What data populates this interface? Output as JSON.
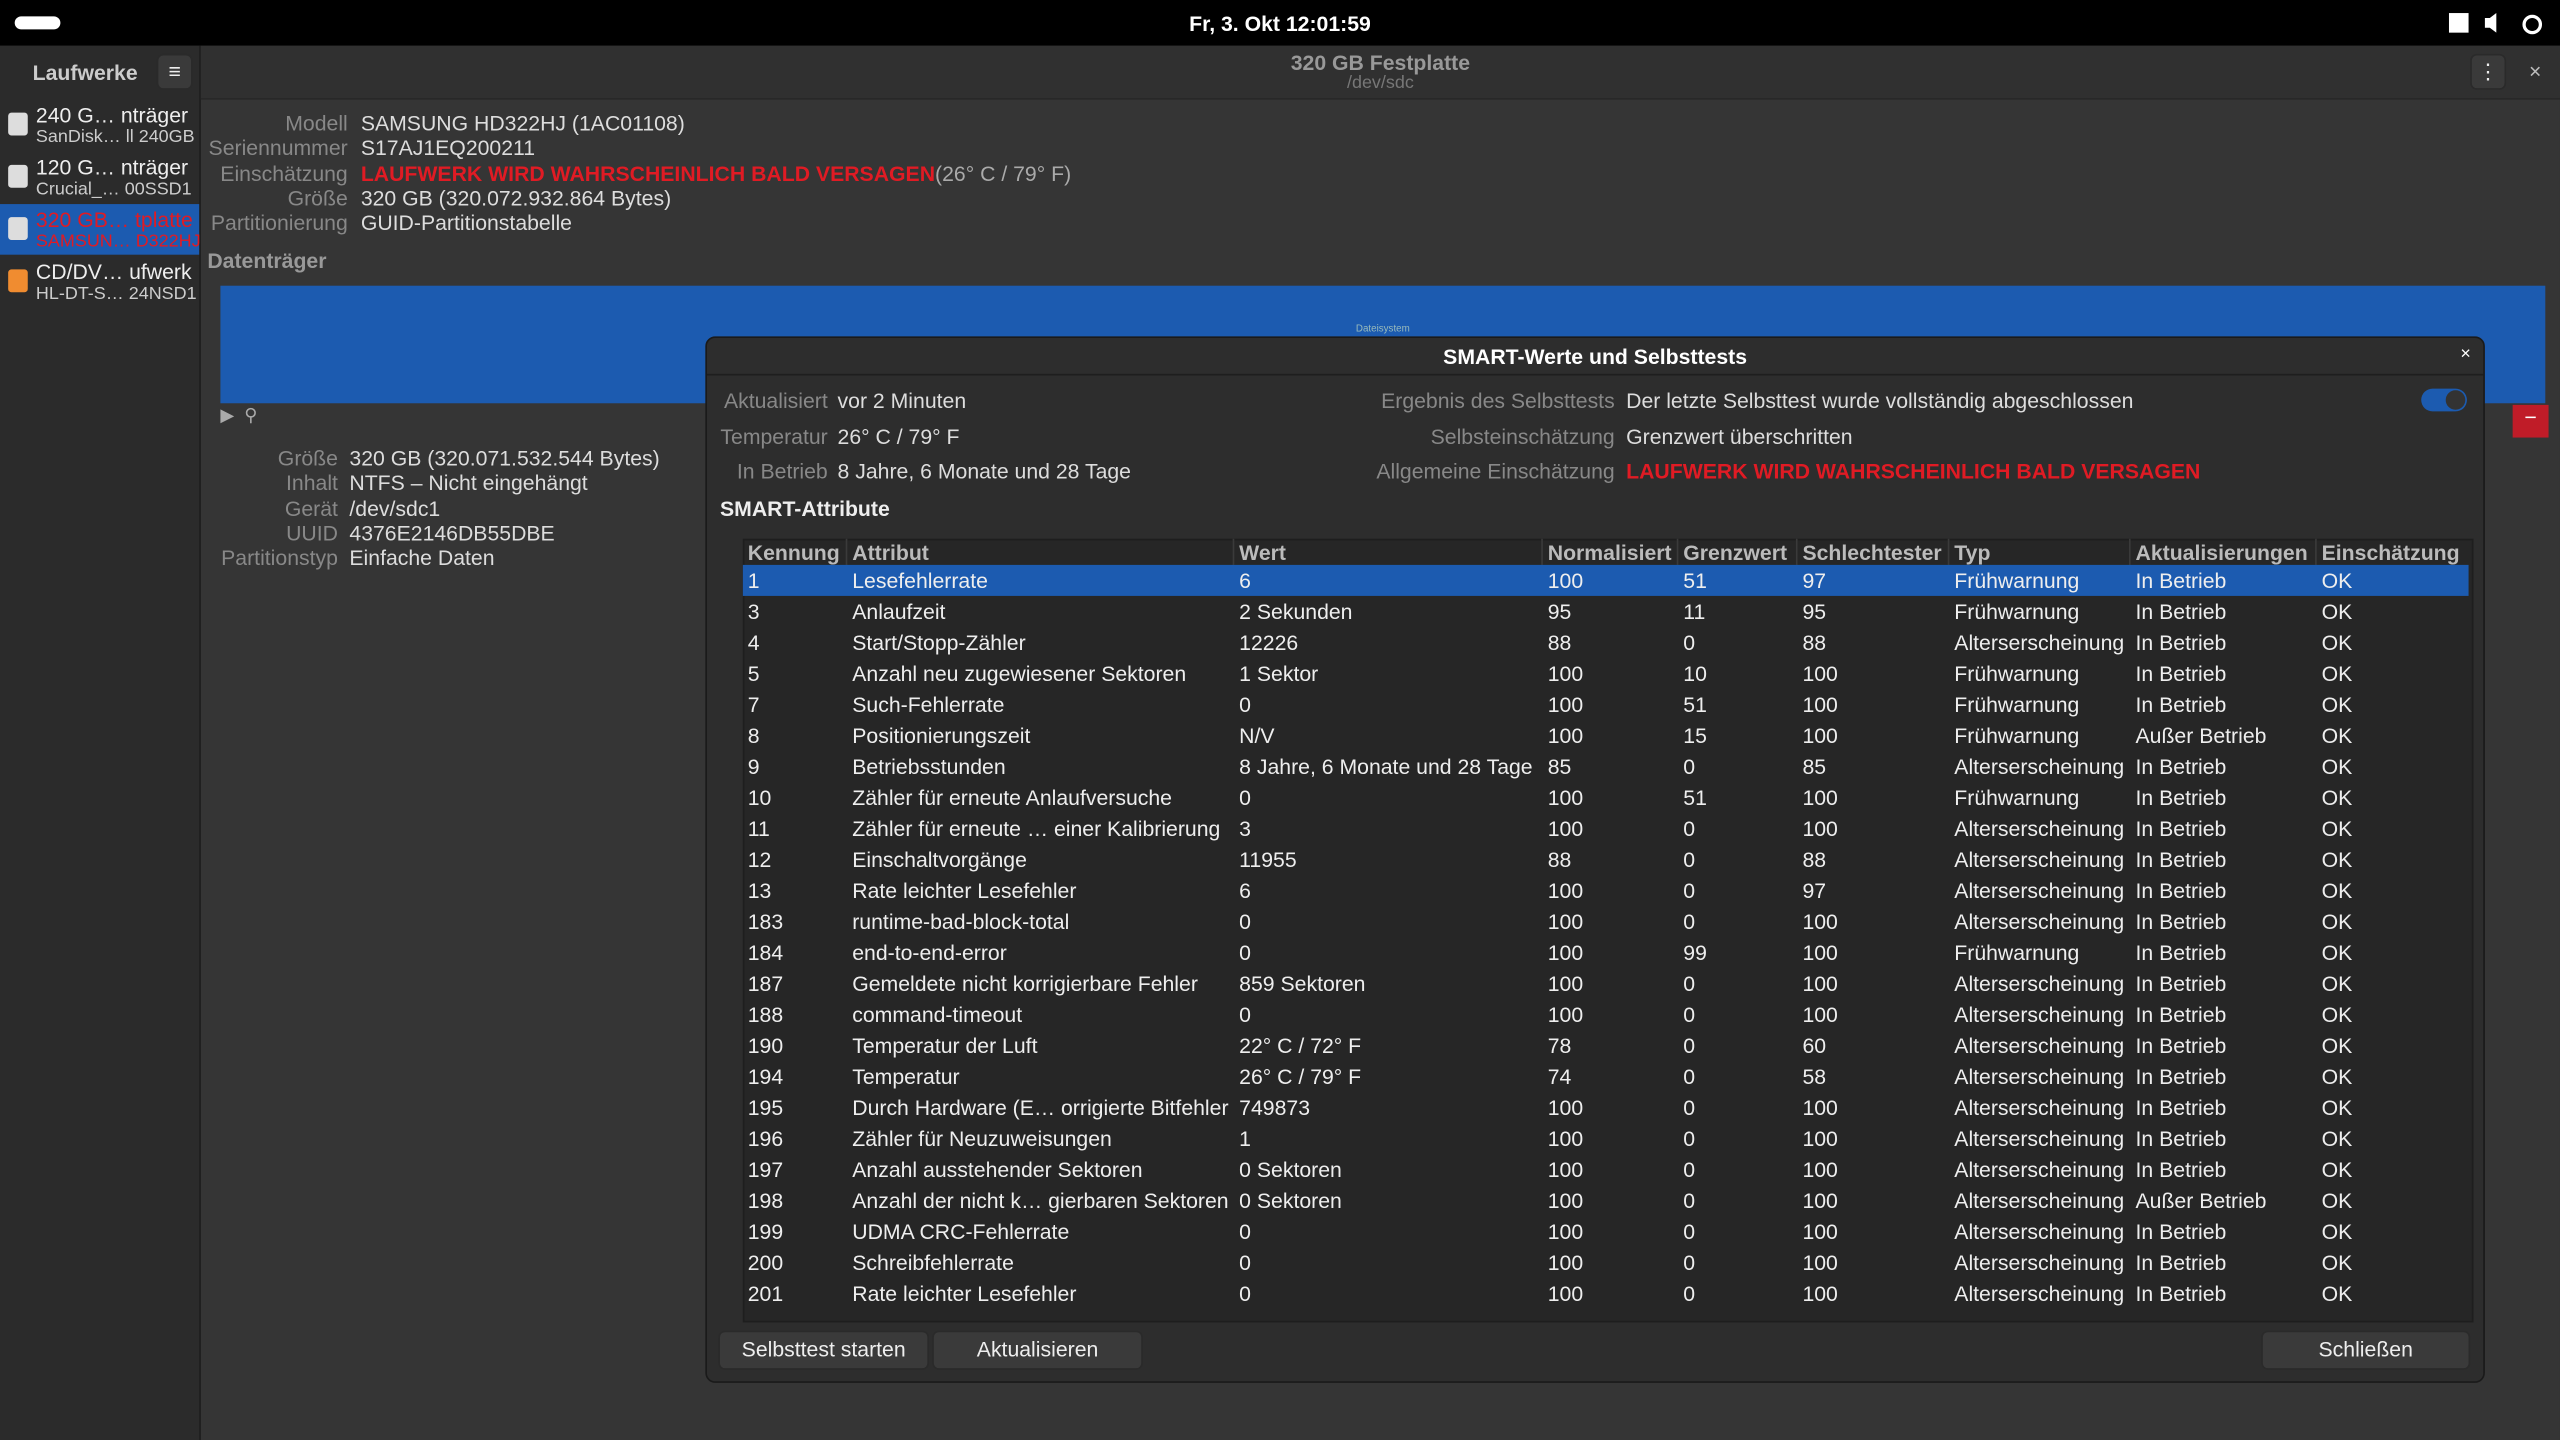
{
  "topbar": {
    "datetime": "Fr, 3. Okt  12:01:59"
  },
  "sidebar": {
    "title": "Laufwerke",
    "drives": [
      {
        "name": "240 G…  nträger",
        "detail": "SanDisk…  ll 240GB"
      },
      {
        "name": "120 G…  nträger",
        "detail": "Crucial_…  00SSD1"
      },
      {
        "name": "320 GB…  tplatte",
        "detail": "SAMSUN…  D322HJ"
      },
      {
        "name": "CD/DV…  ufwerk",
        "detail": "HL-DT-S…  24NSD1"
      }
    ]
  },
  "header": {
    "title": "320 GB Festplatte",
    "subtitle": "/dev/sdc"
  },
  "drive_info": [
    {
      "label": "Modell",
      "value": "SAMSUNG HD322HJ (1AC01108)"
    },
    {
      "label": "Seriennummer",
      "value": "S17AJ1EQ200211"
    },
    {
      "label": "Einschätzung",
      "value": "LAUFWERK WIRD WAHRSCHEINLICH BALD VERSAGEN",
      "extra": " (26° C / 79° F)"
    },
    {
      "label": "Größe",
      "value": "320 GB (320.072.932.864 Bytes)"
    },
    {
      "label": "Partitionierung",
      "value": "GUID-Partitionstabelle"
    }
  ],
  "volumes": {
    "heading": "Datenträger",
    "bar_label": "Dateisystem"
  },
  "partition_info": [
    {
      "label": "Größe",
      "value": "320 GB (320.071.532.544 Bytes)"
    },
    {
      "label": "Inhalt",
      "value": "NTFS – Nicht eingehängt"
    },
    {
      "label": "Gerät",
      "value": "/dev/sdc1"
    },
    {
      "label": "UUID",
      "value": "4376E2146DB55DBE"
    },
    {
      "label": "Partitionstyp",
      "value": "Einfache Daten"
    }
  ],
  "dialog": {
    "title": "SMART-Werte und Selbsttests",
    "left": [
      {
        "label": "Aktualisiert",
        "value": "vor 2 Minuten"
      },
      {
        "label": "Temperatur",
        "value": "26° C / 79° F"
      },
      {
        "label": "In Betrieb",
        "value": "8 Jahre, 6 Monate und 28 Tage"
      }
    ],
    "right": [
      {
        "label": "Ergebnis des Selbsttests",
        "value": "Der letzte Selbsttest wurde vollständig abgeschlossen"
      },
      {
        "label": "Selbsteinschätzung",
        "value": "Grenzwert überschritten"
      },
      {
        "label": "Allgemeine Einschätzung",
        "value": "LAUFWERK WIRD WAHRSCHEINLICH BALD VERSAGEN"
      }
    ],
    "section": "SMART-Attribute",
    "table": {
      "columns": [
        "Kennung",
        "Attribut",
        "Wert",
        "Normalisiert",
        "Grenzwert",
        "Schlechtester",
        "Typ",
        "Aktualisierungen",
        "Einschätzung"
      ],
      "rows": [
        [
          1,
          "Lesefehlerrate",
          "6",
          100,
          51,
          97,
          "Frühwarnung",
          "In Betrieb",
          "OK"
        ],
        [
          3,
          "Anlaufzeit",
          "2 Sekunden",
          95,
          11,
          95,
          "Frühwarnung",
          "In Betrieb",
          "OK"
        ],
        [
          4,
          "Start/Stopp-Zähler",
          "12226",
          88,
          0,
          88,
          "Alterserscheinung",
          "In Betrieb",
          "OK"
        ],
        [
          5,
          "Anzahl neu zugewiesener Sektoren",
          "1 Sektor",
          100,
          10,
          100,
          "Frühwarnung",
          "In Betrieb",
          "OK"
        ],
        [
          7,
          "Such-Fehlerrate",
          "0",
          100,
          51,
          100,
          "Frühwarnung",
          "In Betrieb",
          "OK"
        ],
        [
          8,
          "Positionierungszeit",
          "N/V",
          100,
          15,
          100,
          "Frühwarnung",
          "Außer Betrieb",
          "OK"
        ],
        [
          9,
          "Betriebsstunden",
          "8 Jahre, 6 Monate und 28 Tage",
          85,
          0,
          85,
          "Alterserscheinung",
          "In Betrieb",
          "OK"
        ],
        [
          10,
          "Zähler für erneute Anlaufversuche",
          "0",
          100,
          51,
          100,
          "Frühwarnung",
          "In Betrieb",
          "OK"
        ],
        [
          11,
          "Zähler für erneute …  einer Kalibrierung",
          "3",
          100,
          0,
          100,
          "Alterserscheinung",
          "In Betrieb",
          "OK"
        ],
        [
          12,
          "Einschaltvorgänge",
          "11955",
          88,
          0,
          88,
          "Alterserscheinung",
          "In Betrieb",
          "OK"
        ],
        [
          13,
          "Rate leichter Lesefehler",
          "6",
          100,
          0,
          97,
          "Alterserscheinung",
          "In Betrieb",
          "OK"
        ],
        [
          183,
          "runtime-bad-block-total",
          "0",
          100,
          0,
          100,
          "Alterserscheinung",
          "In Betrieb",
          "OK"
        ],
        [
          184,
          "end-to-end-error",
          "0",
          100,
          99,
          100,
          "Frühwarnung",
          "In Betrieb",
          "OK"
        ],
        [
          187,
          "Gemeldete nicht korrigierbare Fehler",
          "859 Sektoren",
          100,
          0,
          100,
          "Alterserscheinung",
          "In Betrieb",
          "OK"
        ],
        [
          188,
          "command-timeout",
          "0",
          100,
          0,
          100,
          "Alterserscheinung",
          "In Betrieb",
          "OK"
        ],
        [
          190,
          "Temperatur der Luft",
          "22° C / 72° F",
          78,
          0,
          60,
          "Alterserscheinung",
          "In Betrieb",
          "OK"
        ],
        [
          194,
          "Temperatur",
          "26° C / 79° F",
          74,
          0,
          58,
          "Alterserscheinung",
          "In Betrieb",
          "OK"
        ],
        [
          195,
          "Durch Hardware (E… orrigierte Bitfehler",
          "749873",
          100,
          0,
          100,
          "Alterserscheinung",
          "In Betrieb",
          "OK"
        ],
        [
          196,
          "Zähler für Neuzuweisungen",
          "1",
          100,
          0,
          100,
          "Alterserscheinung",
          "In Betrieb",
          "OK"
        ],
        [
          197,
          "Anzahl ausstehender Sektoren",
          "0 Sektoren",
          100,
          0,
          100,
          "Alterserscheinung",
          "In Betrieb",
          "OK"
        ],
        [
          198,
          "Anzahl der nicht k… gierbaren Sektoren",
          "0 Sektoren",
          100,
          0,
          100,
          "Alterserscheinung",
          "Außer Betrieb",
          "OK"
        ],
        [
          199,
          "UDMA CRC-Fehlerrate",
          "0",
          100,
          0,
          100,
          "Alterserscheinung",
          "In Betrieb",
          "OK"
        ],
        [
          200,
          "Schreibfehlerrate",
          "0",
          100,
          0,
          100,
          "Alterserscheinung",
          "In Betrieb",
          "OK"
        ],
        [
          201,
          "Rate leichter Lesefehler",
          "0",
          100,
          0,
          100,
          "Alterserscheinung",
          "In Betrieb",
          "OK"
        ]
      ]
    },
    "buttons": {
      "selftest": "Selbsttest starten",
      "refresh": "Aktualisieren",
      "close": "Schließen"
    }
  }
}
